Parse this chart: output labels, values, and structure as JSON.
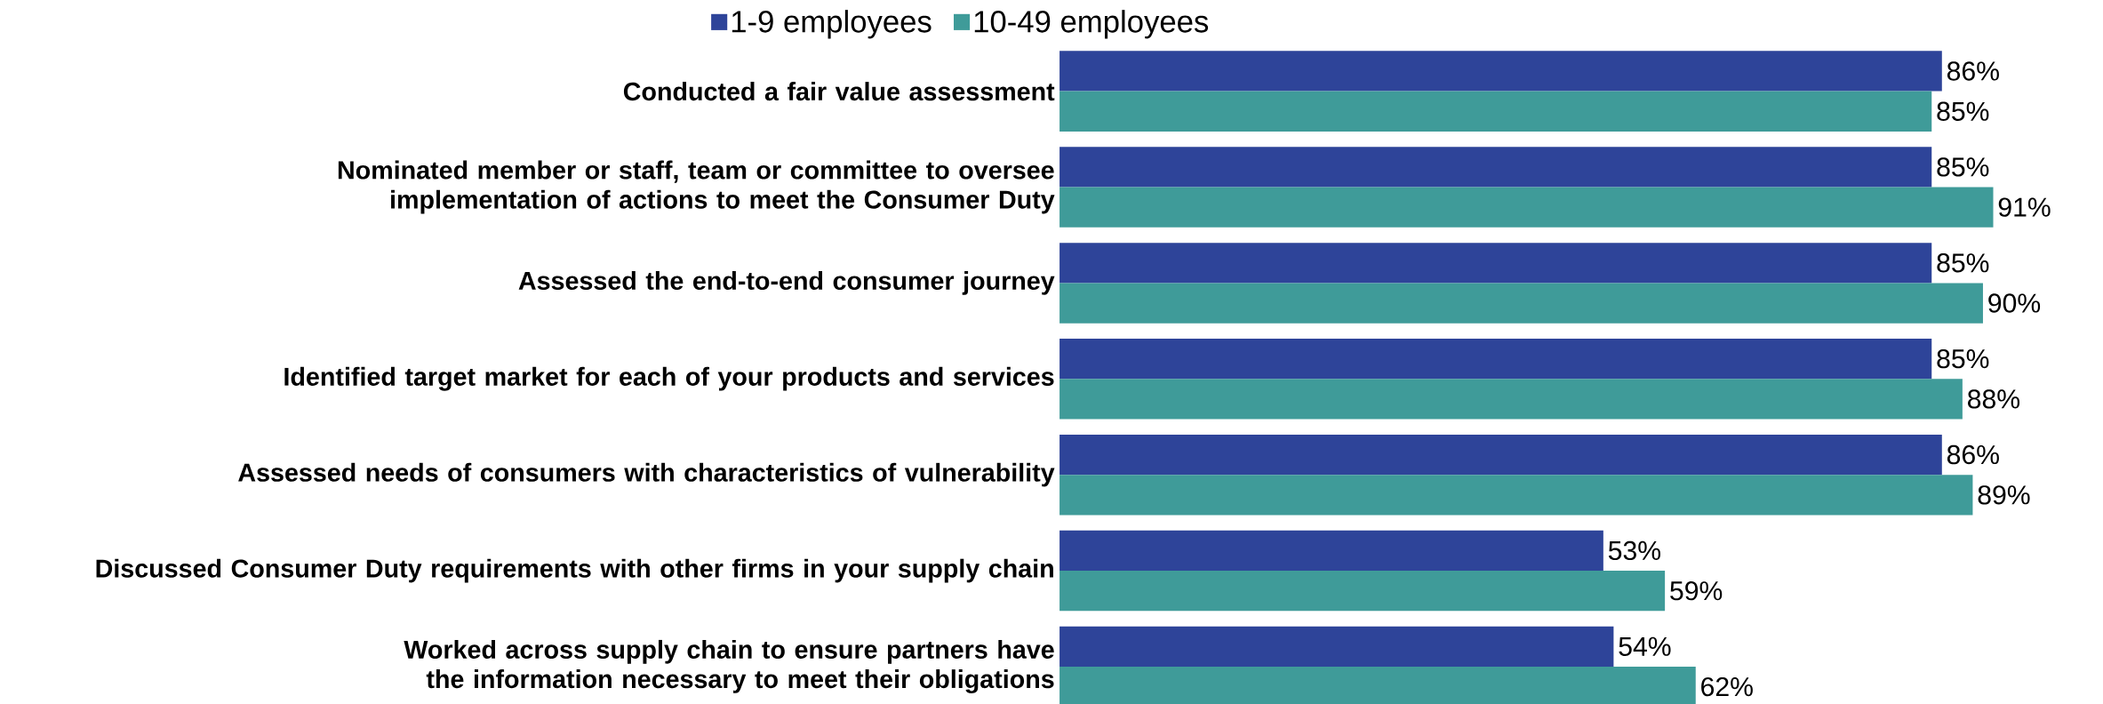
{
  "chart_data": {
    "type": "bar",
    "orientation": "horizontal",
    "categories": [
      "Conducted a fair value assessment",
      "Nominated member or staff, team or committee to oversee implementation of actions to meet the Consumer Duty",
      "Assessed the end-to-end consumer journey",
      "Identified target market for each of your products and services",
      "Assessed needs of consumers with characteristics of vulnerability",
      "Discussed Consumer Duty requirements with other firms in your supply chain",
      "Worked across supply chain to ensure partners have the information necessary to meet their obligations"
    ],
    "series": [
      {
        "name": "1-9 employees",
        "color": "#2e4499",
        "values": [
          86,
          85,
          85,
          85,
          86,
          53,
          54
        ],
        "value_labels": [
          "86%",
          "85%",
          "85%",
          "85%",
          "86%",
          "53%",
          "54%"
        ]
      },
      {
        "name": "10-49 employees",
        "color": "#3f9b99",
        "values": [
          85,
          91,
          90,
          88,
          89,
          59,
          62
        ],
        "value_labels": [
          "85%",
          "91%",
          "90%",
          "88%",
          "89%",
          "59%",
          "62%"
        ]
      }
    ],
    "tick_labels": "y",
    "legend": "top"
  }
}
